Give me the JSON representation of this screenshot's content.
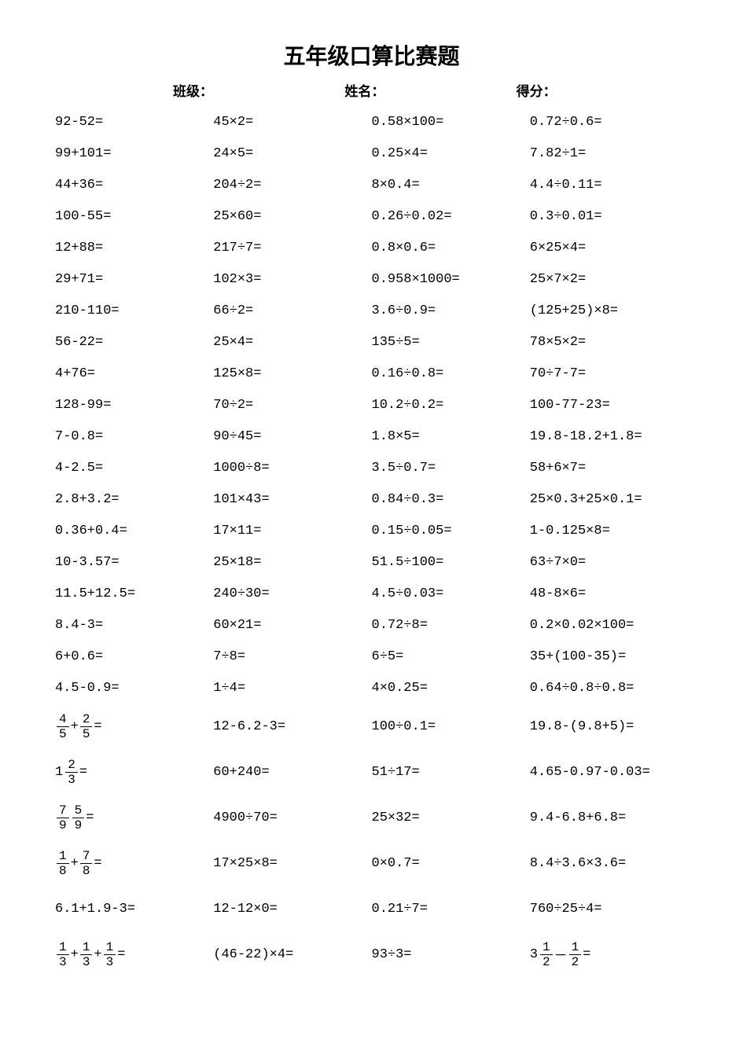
{
  "page": {
    "background": "#ffffff",
    "text_color": "#000000",
    "title": "五年级口算比赛题",
    "title_fontsize": 28,
    "body_fontsize": 17,
    "font_family": "SimSun"
  },
  "header": {
    "class_label": "班级：",
    "name_label": "姓名：",
    "score_label": "得分："
  },
  "columns": [
    [
      {
        "type": "text",
        "v": "92-52="
      },
      {
        "type": "text",
        "v": "99+101="
      },
      {
        "type": "text",
        "v": "44+36="
      },
      {
        "type": "text",
        "v": "100-55="
      },
      {
        "type": "text",
        "v": "12+88="
      },
      {
        "type": "text",
        "v": "29+71="
      },
      {
        "type": "text",
        "v": "210-110="
      },
      {
        "type": "text",
        "v": "56-22="
      },
      {
        "type": "text",
        "v": "4+76="
      },
      {
        "type": "text",
        "v": "128-99="
      },
      {
        "type": "text",
        "v": "7-0.8="
      },
      {
        "type": "text",
        "v": "4-2.5="
      },
      {
        "type": "text",
        "v": "2.8+3.2="
      },
      {
        "type": "text",
        "v": "0.36+0.4="
      },
      {
        "type": "text",
        "v": "10-3.57="
      },
      {
        "type": "text",
        "v": "11.5+12.5="
      },
      {
        "type": "text",
        "v": "8.4-3="
      },
      {
        "type": "text",
        "v": "6+0.6="
      },
      {
        "type": "text",
        "v": "4.5-0.9="
      },
      {
        "type": "fracsum",
        "parts": [
          {
            "n": "4",
            "d": "5"
          },
          {
            "op": "+"
          },
          {
            "n": "2",
            "d": "5"
          }
        ],
        "tall": true
      },
      {
        "type": "mixedminus",
        "whole": "1",
        "n": "2",
        "d": "3",
        "tall": true
      },
      {
        "type": "fracsum",
        "parts": [
          {
            "n": "7",
            "d": "9"
          },
          {
            "op": " "
          },
          {
            "n": "5",
            "d": "9"
          }
        ],
        "tall": true
      },
      {
        "type": "fracsum",
        "parts": [
          {
            "n": "1",
            "d": "8"
          },
          {
            "op": "+"
          },
          {
            "n": "7",
            "d": "8"
          }
        ],
        "tall": true
      },
      {
        "type": "text",
        "v": "6.1+1.9-3=",
        "tall": true
      },
      {
        "type": "fracsum",
        "parts": [
          {
            "n": "1",
            "d": "3"
          },
          {
            "op": "+"
          },
          {
            "n": "1",
            "d": "3"
          },
          {
            "op": "+"
          },
          {
            "n": "1",
            "d": "3"
          }
        ],
        "tall": true
      }
    ],
    [
      {
        "type": "text",
        "v": "45×2="
      },
      {
        "type": "text",
        "v": "24×5="
      },
      {
        "type": "text",
        "v": "204÷2="
      },
      {
        "type": "text",
        "v": "25×60="
      },
      {
        "type": "text",
        "v": "217÷7="
      },
      {
        "type": "text",
        "v": "102×3="
      },
      {
        "type": "text",
        "v": "66÷2="
      },
      {
        "type": "text",
        "v": "25×4="
      },
      {
        "type": "text",
        "v": "125×8="
      },
      {
        "type": "text",
        "v": "70÷2="
      },
      {
        "type": "text",
        "v": "90÷45="
      },
      {
        "type": "text",
        "v": "1000÷8="
      },
      {
        "type": "text",
        "v": "101×43="
      },
      {
        "type": "text",
        "v": "17×11="
      },
      {
        "type": "text",
        "v": "25×18="
      },
      {
        "type": "text",
        "v": "240÷30="
      },
      {
        "type": "text",
        "v": "60×21="
      },
      {
        "type": "text",
        "v": "7÷8="
      },
      {
        "type": "text",
        "v": "1÷4="
      },
      {
        "type": "text",
        "v": "12-6.2-3=",
        "tall": true
      },
      {
        "type": "text",
        "v": "60+240=",
        "tall": true
      },
      {
        "type": "text",
        "v": "4900÷70=",
        "tall": true
      },
      {
        "type": "text",
        "v": "17×25×8=",
        "tall": true
      },
      {
        "type": "text",
        "v": "12-12×0=",
        "tall": true
      },
      {
        "type": "text",
        "v": "(46-22)×4=",
        "tall": true
      }
    ],
    [
      {
        "type": "text",
        "v": "0.58×100="
      },
      {
        "type": "text",
        "v": "0.25×4="
      },
      {
        "type": "text",
        "v": "8×0.4="
      },
      {
        "type": "text",
        "v": "0.26÷0.02="
      },
      {
        "type": "text",
        "v": "0.8×0.6="
      },
      {
        "type": "text",
        "v": "0.958×1000="
      },
      {
        "type": "text",
        "v": "3.6÷0.9="
      },
      {
        "type": "text",
        "v": "135÷5="
      },
      {
        "type": "text",
        "v": "0.16÷0.8="
      },
      {
        "type": "text",
        "v": "10.2÷0.2="
      },
      {
        "type": "text",
        "v": "1.8×5="
      },
      {
        "type": "text",
        "v": "3.5÷0.7="
      },
      {
        "type": "text",
        "v": "0.84÷0.3="
      },
      {
        "type": "text",
        "v": "0.15÷0.05="
      },
      {
        "type": "text",
        "v": "51.5÷100="
      },
      {
        "type": "text",
        "v": "4.5÷0.03="
      },
      {
        "type": "text",
        "v": "0.72÷8="
      },
      {
        "type": "text",
        "v": "6÷5="
      },
      {
        "type": "text",
        "v": "4×0.25="
      },
      {
        "type": "text",
        "v": "100÷0.1=",
        "tall": true
      },
      {
        "type": "text",
        "v": "51÷17=",
        "tall": true
      },
      {
        "type": "text",
        "v": "25×32=",
        "tall": true
      },
      {
        "type": "text",
        "v": "0×0.7=",
        "tall": true
      },
      {
        "type": "text",
        "v": "0.21÷7=",
        "tall": true
      },
      {
        "type": "text",
        "v": "93÷3=",
        "tall": true
      }
    ],
    [
      {
        "type": "text",
        "v": "0.72÷0.6="
      },
      {
        "type": "text",
        "v": "7.82÷1="
      },
      {
        "type": "text",
        "v": "4.4÷0.11="
      },
      {
        "type": "text",
        "v": "0.3÷0.01="
      },
      {
        "type": "text",
        "v": "6×25×4="
      },
      {
        "type": "text",
        "v": "25×7×2="
      },
      {
        "type": "text",
        "v": "(125+25)×8="
      },
      {
        "type": "text",
        "v": "78×5×2="
      },
      {
        "type": "text",
        "v": "70÷7-7="
      },
      {
        "type": "text",
        "v": "100-77-23="
      },
      {
        "type": "text",
        "v": "19.8-18.2+1.8="
      },
      {
        "type": "text",
        "v": "58+6×7="
      },
      {
        "type": "text",
        "v": "25×0.3+25×0.1="
      },
      {
        "type": "text",
        "v": "1-0.125×8="
      },
      {
        "type": "text",
        "v": "63÷7×0="
      },
      {
        "type": "text",
        "v": "48-8×6="
      },
      {
        "type": "text",
        "v": "0.2×0.02×100="
      },
      {
        "type": "text",
        "v": "35+(100-35)="
      },
      {
        "type": "text",
        "v": "0.64÷0.8÷0.8="
      },
      {
        "type": "text",
        "v": "19.8-(9.8+5)=",
        "tall": true
      },
      {
        "type": "text",
        "v": "4.65-0.97-0.03=",
        "tall": true
      },
      {
        "type": "text",
        "v": "9.4-6.8+6.8=",
        "tall": true
      },
      {
        "type": "text",
        "v": "8.4÷3.6×3.6=",
        "tall": true
      },
      {
        "type": "text",
        "v": "760÷25÷4=",
        "tall": true
      },
      {
        "type": "mixeddiff",
        "whole1": "3",
        "n1": "1",
        "d1": "2",
        "op": "－",
        "n2": "1",
        "d2": "2",
        "tall": true
      }
    ]
  ]
}
